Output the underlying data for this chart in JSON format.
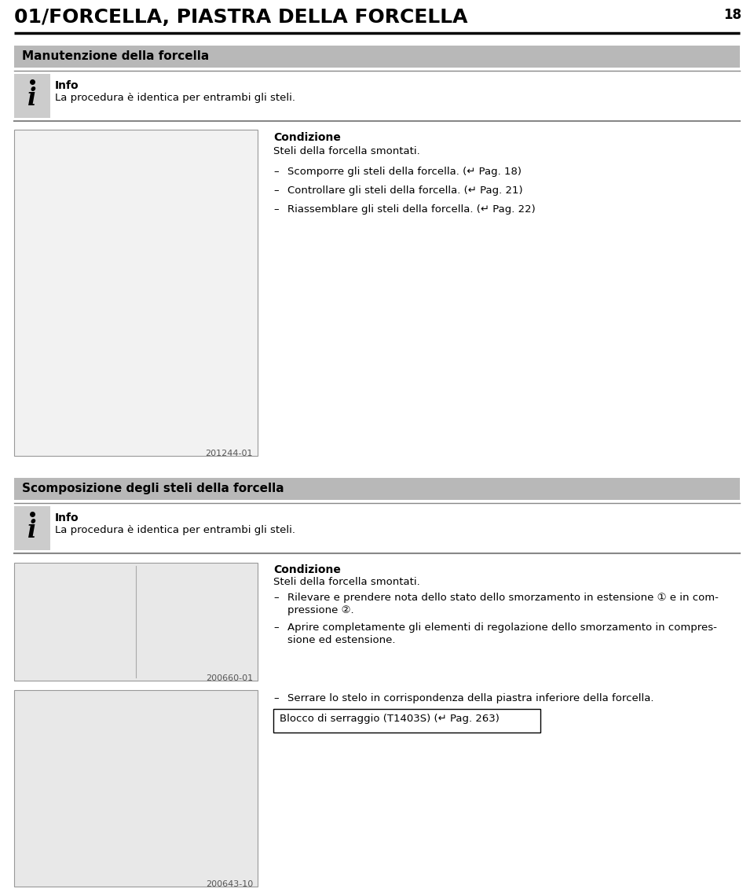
{
  "page_title": "01/FORCELLA, PIASTRA DELLA FORCELLA",
  "page_number": "18",
  "bg_color": "#ffffff",
  "section1_header": "Manutenzione della forcella",
  "section2_header": "Scomposizione degli steli della forcella",
  "header_bg": "#b8b8b8",
  "header_text_color": "#000000",
  "info_label": "Info",
  "info_text1": "La procedura è identica per entrambi gli steli.",
  "info_text2": "La procedura è identica per entrambi gli steli.",
  "divider_color": "#888888",
  "condizione_label": "Condizione",
  "condizione_text": "Steli della forcella smontati.",
  "condizione_text2": "Steli della forcella smontati.",
  "bullet_items_section1": [
    "Scomporre gli steli della forcella. (↵ Pag. 18)",
    "Controllare gli steli della forcella. (↵ Pag. 21)",
    "Riassemblare gli steli della forcella. (↵ Pag. 22)"
  ],
  "image1_label": "201244-01",
  "image2_label": "200660-01",
  "image3_label": "200643-10",
  "bullet2_line1": "Rilevare e prendere nota dello stato dello smorzamento in estensione ① e in com-",
  "bullet2_line2": "pressione ②.",
  "bullet3_line1": "Aprire completamente gli elementi di regolazione dello smorzamento in compres-",
  "bullet3_line2": "sione ed estensione.",
  "bullet_section3": "Serrare lo stelo in corrispondenza della piastra inferiore della forcella.",
  "box_text": "Blocco di serraggio (T1403S) (↵ Pag. 263)"
}
